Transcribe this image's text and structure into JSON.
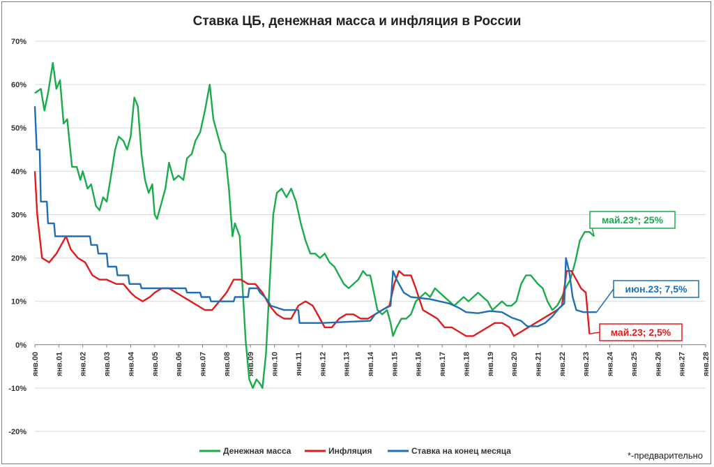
{
  "chart_data": {
    "type": "line",
    "title": "Ставка ЦБ, денежная масса и инфляция в России",
    "y_ticks": [
      "70%",
      "60%",
      "50%",
      "40%",
      "30%",
      "20%",
      "10%",
      "0%",
      "-10%",
      "-20%"
    ],
    "ylim": [
      -20,
      70
    ],
    "x_ticks": [
      "янв.00",
      "янв.01",
      "янв.02",
      "янв.03",
      "янв.04",
      "янв.05",
      "янв.06",
      "янв.07",
      "янв.08",
      "янв.09",
      "янв.10",
      "янв.11",
      "янв.12",
      "янв.13",
      "янв.14",
      "янв.15",
      "янв.16",
      "янв.17",
      "янв.18",
      "янв.19",
      "янв.20",
      "янв.21",
      "янв.22",
      "янв.23",
      "янв.24",
      "янв.25",
      "янв.26",
      "янв.27",
      "янв.28"
    ],
    "xlim": [
      2000,
      2028
    ],
    "grid": true,
    "legend_position": "bottom",
    "footnote": "*-предварительно",
    "series": [
      {
        "name": "Денежная масса",
        "color": "#1aab4b",
        "points": [
          [
            2000.0,
            58
          ],
          [
            2000.25,
            59
          ],
          [
            2000.4,
            54
          ],
          [
            2000.55,
            58
          ],
          [
            2000.75,
            65
          ],
          [
            2000.9,
            59
          ],
          [
            2001.05,
            61
          ],
          [
            2001.2,
            51
          ],
          [
            2001.35,
            52
          ],
          [
            2001.55,
            41
          ],
          [
            2001.75,
            41
          ],
          [
            2001.9,
            38
          ],
          [
            2002.0,
            40
          ],
          [
            2002.2,
            36
          ],
          [
            2002.35,
            37
          ],
          [
            2002.55,
            32
          ],
          [
            2002.7,
            31
          ],
          [
            2002.85,
            34
          ],
          [
            2003.0,
            33
          ],
          [
            2003.15,
            38
          ],
          [
            2003.35,
            45
          ],
          [
            2003.5,
            48
          ],
          [
            2003.7,
            47
          ],
          [
            2003.85,
            45
          ],
          [
            2004.0,
            48
          ],
          [
            2004.15,
            57
          ],
          [
            2004.3,
            55
          ],
          [
            2004.45,
            44
          ],
          [
            2004.6,
            38
          ],
          [
            2004.75,
            35
          ],
          [
            2004.9,
            37
          ],
          [
            2005.0,
            30
          ],
          [
            2005.1,
            29
          ],
          [
            2005.25,
            32
          ],
          [
            2005.45,
            36
          ],
          [
            2005.6,
            42
          ],
          [
            2005.8,
            38
          ],
          [
            2006.0,
            39
          ],
          [
            2006.2,
            38
          ],
          [
            2006.35,
            43
          ],
          [
            2006.55,
            44
          ],
          [
            2006.7,
            47
          ],
          [
            2006.9,
            49
          ],
          [
            2007.1,
            54
          ],
          [
            2007.3,
            60
          ],
          [
            2007.45,
            52
          ],
          [
            2007.6,
            49
          ],
          [
            2007.8,
            45
          ],
          [
            2007.95,
            44
          ],
          [
            2008.1,
            36
          ],
          [
            2008.25,
            25
          ],
          [
            2008.35,
            28
          ],
          [
            2008.55,
            25
          ],
          [
            2008.65,
            15
          ],
          [
            2008.8,
            1
          ],
          [
            2008.95,
            -8
          ],
          [
            2009.1,
            -10
          ],
          [
            2009.25,
            -8
          ],
          [
            2009.4,
            -9
          ],
          [
            2009.5,
            -10
          ],
          [
            2009.65,
            -2
          ],
          [
            2009.8,
            14
          ],
          [
            2009.95,
            30
          ],
          [
            2010.1,
            35
          ],
          [
            2010.3,
            36
          ],
          [
            2010.5,
            34
          ],
          [
            2010.7,
            36
          ],
          [
            2010.9,
            33
          ],
          [
            2011.1,
            28
          ],
          [
            2011.3,
            24
          ],
          [
            2011.5,
            21
          ],
          [
            2011.7,
            21
          ],
          [
            2011.9,
            20
          ],
          [
            2012.1,
            21
          ],
          [
            2012.3,
            19
          ],
          [
            2012.5,
            18
          ],
          [
            2012.7,
            16
          ],
          [
            2012.9,
            14
          ],
          [
            2013.1,
            13
          ],
          [
            2013.3,
            14
          ],
          [
            2013.5,
            15
          ],
          [
            2013.7,
            17
          ],
          [
            2013.85,
            16
          ],
          [
            2014.0,
            16
          ],
          [
            2014.15,
            12
          ],
          [
            2014.3,
            8
          ],
          [
            2014.5,
            7
          ],
          [
            2014.7,
            8
          ],
          [
            2014.85,
            5
          ],
          [
            2014.95,
            2
          ],
          [
            2015.1,
            4
          ],
          [
            2015.3,
            6
          ],
          [
            2015.5,
            6
          ],
          [
            2015.7,
            7
          ],
          [
            2015.9,
            10
          ],
          [
            2016.1,
            11
          ],
          [
            2016.3,
            12
          ],
          [
            2016.5,
            11
          ],
          [
            2016.7,
            13
          ],
          [
            2016.9,
            12
          ],
          [
            2017.1,
            11
          ],
          [
            2017.3,
            10
          ],
          [
            2017.5,
            9
          ],
          [
            2017.7,
            10
          ],
          [
            2017.9,
            11
          ],
          [
            2018.1,
            10
          ],
          [
            2018.3,
            11
          ],
          [
            2018.5,
            12
          ],
          [
            2018.7,
            11
          ],
          [
            2018.9,
            10
          ],
          [
            2019.1,
            8
          ],
          [
            2019.3,
            9
          ],
          [
            2019.5,
            10
          ],
          [
            2019.7,
            9
          ],
          [
            2019.9,
            9
          ],
          [
            2020.1,
            10
          ],
          [
            2020.3,
            14
          ],
          [
            2020.5,
            16
          ],
          [
            2020.7,
            16
          ],
          [
            2020.85,
            15
          ],
          [
            2021.0,
            14
          ],
          [
            2021.2,
            13
          ],
          [
            2021.4,
            10
          ],
          [
            2021.6,
            8
          ],
          [
            2021.8,
            9
          ],
          [
            2022.0,
            11
          ],
          [
            2022.15,
            13
          ],
          [
            2022.35,
            15
          ],
          [
            2022.55,
            19
          ],
          [
            2022.75,
            24
          ],
          [
            2022.95,
            26
          ],
          [
            2023.15,
            26
          ],
          [
            2023.35,
            25
          ]
        ]
      },
      {
        "name": "Инфляция",
        "color": "#e31a1c",
        "points": [
          [
            2000.0,
            40
          ],
          [
            2000.1,
            30
          ],
          [
            2000.3,
            20
          ],
          [
            2000.6,
            19
          ],
          [
            2000.9,
            21
          ],
          [
            2001.1,
            23
          ],
          [
            2001.3,
            25
          ],
          [
            2001.5,
            22
          ],
          [
            2001.8,
            20
          ],
          [
            2002.1,
            19
          ],
          [
            2002.4,
            16
          ],
          [
            2002.7,
            15
          ],
          [
            2003.0,
            15
          ],
          [
            2003.4,
            14
          ],
          [
            2003.7,
            14
          ],
          [
            2004.0,
            12
          ],
          [
            2004.2,
            11
          ],
          [
            2004.5,
            10
          ],
          [
            2004.8,
            11
          ],
          [
            2005.0,
            12
          ],
          [
            2005.3,
            13
          ],
          [
            2005.6,
            13
          ],
          [
            2005.9,
            12
          ],
          [
            2006.2,
            11
          ],
          [
            2006.5,
            10
          ],
          [
            2006.8,
            9
          ],
          [
            2007.1,
            8
          ],
          [
            2007.4,
            8
          ],
          [
            2007.7,
            10
          ],
          [
            2008.0,
            12
          ],
          [
            2008.3,
            15
          ],
          [
            2008.6,
            15
          ],
          [
            2008.9,
            14
          ],
          [
            2009.2,
            14
          ],
          [
            2009.5,
            12
          ],
          [
            2009.8,
            9
          ],
          [
            2010.1,
            7
          ],
          [
            2010.4,
            6
          ],
          [
            2010.7,
            6
          ],
          [
            2011.0,
            9
          ],
          [
            2011.3,
            10
          ],
          [
            2011.6,
            9
          ],
          [
            2011.9,
            6
          ],
          [
            2012.1,
            4
          ],
          [
            2012.4,
            4
          ],
          [
            2012.7,
            6
          ],
          [
            2013.0,
            7
          ],
          [
            2013.3,
            7
          ],
          [
            2013.6,
            6
          ],
          [
            2013.9,
            6
          ],
          [
            2014.2,
            7
          ],
          [
            2014.5,
            8
          ],
          [
            2014.8,
            9
          ],
          [
            2015.0,
            14
          ],
          [
            2015.2,
            17
          ],
          [
            2015.4,
            16
          ],
          [
            2015.7,
            16
          ],
          [
            2015.9,
            13
          ],
          [
            2016.2,
            8
          ],
          [
            2016.5,
            7
          ],
          [
            2016.8,
            6
          ],
          [
            2017.1,
            4
          ],
          [
            2017.4,
            4
          ],
          [
            2017.7,
            3
          ],
          [
            2018.0,
            2
          ],
          [
            2018.3,
            2
          ],
          [
            2018.6,
            3
          ],
          [
            2018.9,
            4
          ],
          [
            2019.2,
            5
          ],
          [
            2019.5,
            5
          ],
          [
            2019.8,
            4
          ],
          [
            2020.0,
            2
          ],
          [
            2020.3,
            3
          ],
          [
            2020.6,
            4
          ],
          [
            2020.9,
            5
          ],
          [
            2021.2,
            6
          ],
          [
            2021.5,
            7
          ],
          [
            2021.8,
            8
          ],
          [
            2022.0,
            9
          ],
          [
            2022.2,
            17
          ],
          [
            2022.4,
            17
          ],
          [
            2022.6,
            15
          ],
          [
            2022.8,
            13
          ],
          [
            2023.0,
            12
          ],
          [
            2023.15,
            2.5
          ]
        ]
      },
      {
        "name": "Ставка на конец месяца",
        "color": "#1f6fb5",
        "points": [
          [
            2000.0,
            55
          ],
          [
            2000.08,
            45
          ],
          [
            2000.2,
            45
          ],
          [
            2000.25,
            33
          ],
          [
            2000.5,
            33
          ],
          [
            2000.55,
            28
          ],
          [
            2000.8,
            28
          ],
          [
            2000.85,
            25
          ],
          [
            2002.3,
            25
          ],
          [
            2002.35,
            23
          ],
          [
            2002.6,
            23
          ],
          [
            2002.65,
            21
          ],
          [
            2003.0,
            21
          ],
          [
            2003.05,
            18
          ],
          [
            2003.4,
            18
          ],
          [
            2003.45,
            16
          ],
          [
            2003.9,
            16
          ],
          [
            2003.95,
            14
          ],
          [
            2004.4,
            14
          ],
          [
            2004.45,
            13
          ],
          [
            2006.3,
            13
          ],
          [
            2006.35,
            12
          ],
          [
            2006.9,
            12
          ],
          [
            2006.95,
            11
          ],
          [
            2007.3,
            11
          ],
          [
            2007.35,
            10
          ],
          [
            2008.3,
            10
          ],
          [
            2008.35,
            11
          ],
          [
            2008.9,
            11
          ],
          [
            2008.95,
            13
          ],
          [
            2009.3,
            13
          ],
          [
            2009.4,
            12
          ],
          [
            2009.6,
            11
          ],
          [
            2009.75,
            10
          ],
          [
            2009.85,
            9
          ],
          [
            2010.4,
            8
          ],
          [
            2011.0,
            8
          ],
          [
            2011.05,
            5
          ],
          [
            2012.0,
            5
          ],
          [
            2014.0,
            5.5
          ],
          [
            2014.2,
            7
          ],
          [
            2014.5,
            8
          ],
          [
            2014.85,
            9
          ],
          [
            2014.95,
            17
          ],
          [
            2015.1,
            15
          ],
          [
            2015.4,
            12
          ],
          [
            2015.7,
            11
          ],
          [
            2016.5,
            10.5
          ],
          [
            2016.9,
            10
          ],
          [
            2017.3,
            9.5
          ],
          [
            2017.7,
            8.5
          ],
          [
            2018.0,
            7.5
          ],
          [
            2018.5,
            7.25
          ],
          [
            2019.0,
            7.75
          ],
          [
            2019.5,
            7.5
          ],
          [
            2019.9,
            6.25
          ],
          [
            2020.3,
            5.5
          ],
          [
            2020.55,
            4.25
          ],
          [
            2021.0,
            4.25
          ],
          [
            2021.3,
            5
          ],
          [
            2021.6,
            6.5
          ],
          [
            2021.9,
            8.5
          ],
          [
            2022.1,
            9.5
          ],
          [
            2022.17,
            20
          ],
          [
            2022.3,
            17
          ],
          [
            2022.45,
            11
          ],
          [
            2022.6,
            8
          ],
          [
            2022.9,
            7.5
          ],
          [
            2023.45,
            7.5
          ]
        ]
      }
    ],
    "annotations": [
      {
        "text": "май.23*; 25%",
        "color": "#1aab4b",
        "series": 0
      },
      {
        "text": "июн.23; 7,5%",
        "color": "#1f6fb5",
        "series": 2
      },
      {
        "text": "май.23; 2,5%",
        "color": "#e31a1c",
        "series": 1
      }
    ]
  }
}
